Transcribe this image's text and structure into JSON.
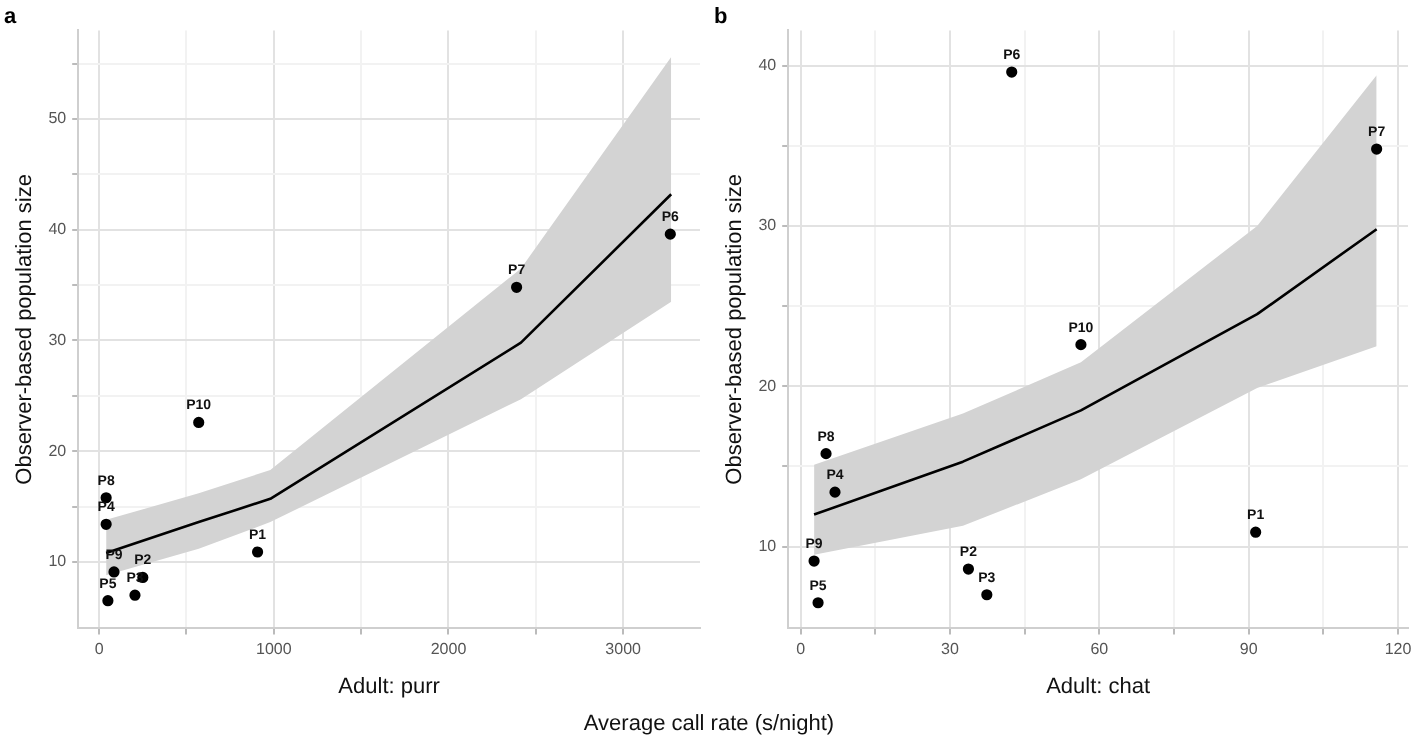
{
  "chart_data": [
    {
      "type": "scatter",
      "title": "a",
      "xlabel": "Adult: purr",
      "ylabel": "Observer-based population size",
      "grid": true,
      "marker": "circle",
      "xlim": [
        -120,
        3440
      ],
      "ylim": [
        4,
        58
      ],
      "xticks": [
        0,
        {
          "value": 500,
          "label": null
        },
        1000,
        {
          "value": 1500,
          "label": null
        },
        2000,
        {
          "value": 2500,
          "label": null
        },
        3000
      ],
      "yticks": [
        10,
        {
          "value": 15,
          "label": null
        },
        20,
        {
          "value": 25,
          "label": null
        },
        30,
        {
          "value": 35,
          "label": null
        },
        40,
        {
          "value": 45,
          "label": null
        },
        50,
        {
          "value": 55,
          "label": null
        }
      ],
      "series": [
        {
          "type": "line",
          "color": "#000000",
          "marker": "none",
          "x": [
            40,
            570,
            980,
            2415,
            3275
          ],
          "values": [
            10.8,
            13.6,
            15.7,
            29.8,
            43.2
          ],
          "lower": [
            8.8,
            11.2,
            13.6,
            24.7,
            33.5
          ],
          "upper": [
            13.8,
            16.2,
            18.3,
            36.5,
            55.6
          ]
        },
        {
          "color": "#000000",
          "x": [
            907,
            250,
            205,
            40,
            50,
            3270,
            2390,
            40,
            85,
            570
          ],
          "values": [
            10.9,
            8.6,
            7.0,
            13.4,
            6.5,
            39.6,
            34.8,
            15.8,
            9.1,
            22.6
          ]
        }
      ],
      "annotations": [
        {
          "text": "P1",
          "x": 907,
          "y": 10.9
        },
        {
          "text": "P2",
          "x": 250,
          "y": 8.6
        },
        {
          "text": "P3",
          "x": 205,
          "y": 7.0
        },
        {
          "text": "P4",
          "x": 40,
          "y": 13.4
        },
        {
          "text": "P5",
          "x": 50,
          "y": 6.5
        },
        {
          "text": "P6",
          "x": 3270,
          "y": 39.6
        },
        {
          "text": "P7",
          "x": 2390,
          "y": 34.8
        },
        {
          "text": "P8",
          "x": 40,
          "y": 15.8
        },
        {
          "text": "P9",
          "x": 85,
          "y": 9.1
        },
        {
          "text": "P10",
          "x": 570,
          "y": 22.6
        }
      ]
    },
    {
      "type": "scatter",
      "title": "b",
      "xlabel": "Adult: chat",
      "ylabel": "Observer-based population size",
      "grid": true,
      "marker": "circle",
      "xlim": [
        -2.5,
        122
      ],
      "ylim": [
        4.9,
        42.2
      ],
      "xticks": [
        0,
        {
          "value": 15,
          "label": null
        },
        30,
        {
          "value": 45,
          "label": null
        },
        60,
        {
          "value": 75,
          "label": null
        },
        90,
        {
          "value": 105,
          "label": null
        },
        120
      ],
      "yticks": [
        10,
        {
          "value": 15,
          "label": null
        },
        20,
        {
          "value": 25,
          "label": null
        },
        30,
        {
          "value": 35,
          "label": null
        },
        40
      ],
      "series": [
        {
          "type": "line",
          "color": "#000000",
          "marker": "none",
          "x": [
            2.7,
            32.6,
            56.3,
            91.7,
            115.7
          ],
          "values": [
            12.0,
            15.3,
            18.5,
            24.5,
            29.8
          ],
          "lower": [
            9.5,
            11.3,
            14.2,
            19.9,
            22.5
          ],
          "upper": [
            15.1,
            18.3,
            21.5,
            30.0,
            39.4
          ]
        },
        {
          "color": "#000000",
          "x": [
            91.4,
            33.7,
            37.4,
            6.9,
            3.5,
            42.4,
            115.7,
            5.1,
            2.7,
            56.3
          ],
          "values": [
            10.9,
            8.6,
            7.0,
            13.4,
            6.5,
            39.6,
            34.8,
            15.8,
            9.1,
            22.6
          ]
        }
      ],
      "annotations": [
        {
          "text": "P1",
          "x": 91.4,
          "y": 10.9
        },
        {
          "text": "P2",
          "x": 33.7,
          "y": 8.6
        },
        {
          "text": "P3",
          "x": 37.4,
          "y": 7.0
        },
        {
          "text": "P4",
          "x": 6.9,
          "y": 13.4
        },
        {
          "text": "P5",
          "x": 3.5,
          "y": 6.5
        },
        {
          "text": "P6",
          "x": 42.4,
          "y": 39.6
        },
        {
          "text": "P7",
          "x": 115.7,
          "y": 34.8
        },
        {
          "text": "P8",
          "x": 5.1,
          "y": 15.8
        },
        {
          "text": "P9",
          "x": 2.7,
          "y": 9.1
        },
        {
          "text": "P10",
          "x": 56.3,
          "y": 22.6
        },
        "Average call rate (s/night)"
      ]
    }
  ]
}
